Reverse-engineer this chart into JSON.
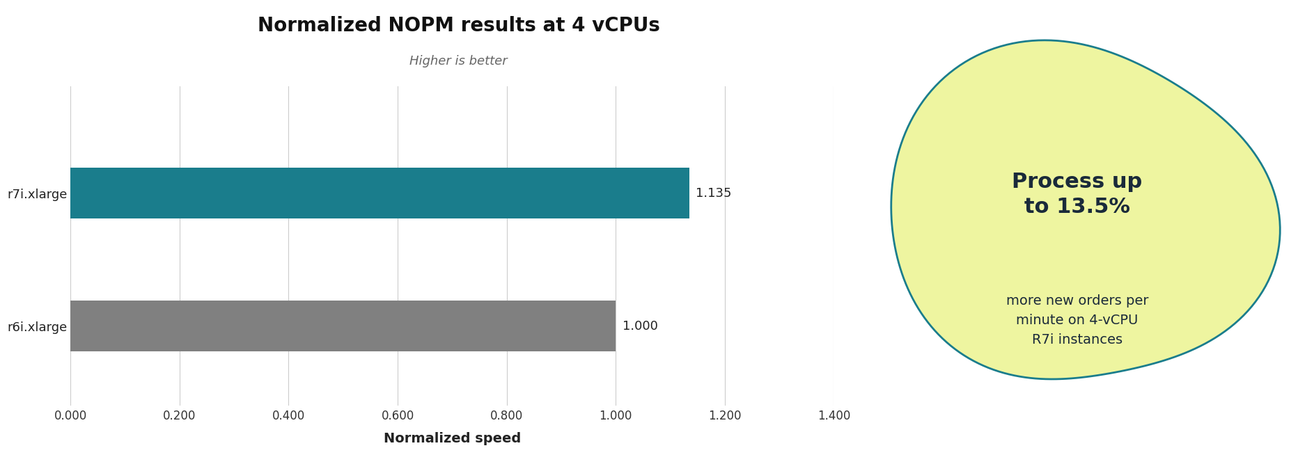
{
  "title": "Normalized NOPM results at 4 vCPUs",
  "subtitle": "Higher is better",
  "xlabel": "Normalized speed",
  "categories": [
    "r7i.xlarge",
    "r6i.xlarge"
  ],
  "values": [
    1.135,
    1.0
  ],
  "bar_colors": [
    "#1a7d8c",
    "#808080"
  ],
  "value_labels": [
    "1.135",
    "1.000"
  ],
  "xlim": [
    0,
    1.4
  ],
  "xticks": [
    0.0,
    0.2,
    0.4,
    0.6,
    0.8,
    1.0,
    1.2,
    1.4
  ],
  "xtick_labels": [
    "0.000",
    "0.200",
    "0.400",
    "0.600",
    "0.800",
    "1.000",
    "1.200",
    "1.400"
  ],
  "background_color": "#ffffff",
  "title_fontsize": 20,
  "subtitle_fontsize": 13,
  "xlabel_fontsize": 14,
  "bar_height": 0.38,
  "annotation_bold_text": "Process up\nto 13.5%",
  "annotation_normal_text": "more new orders per\nminute on 4-vCPU\nR7i instances",
  "blob_fill_color": "#eef5a0",
  "blob_edge_color": "#1a7d8c",
  "dark_text_color": "#1a2a3a",
  "grid_color": "#cccccc"
}
